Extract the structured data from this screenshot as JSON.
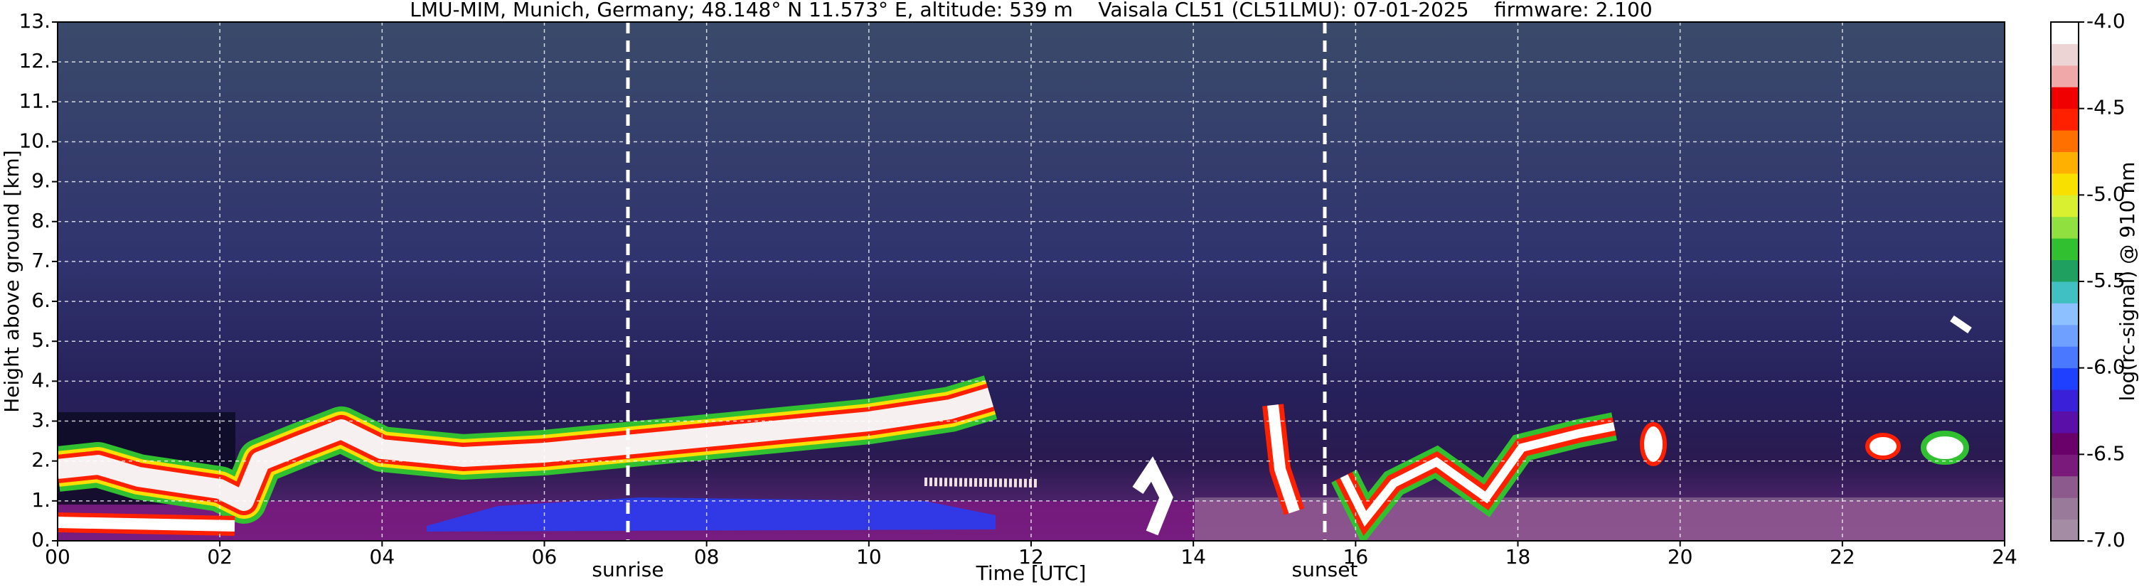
{
  "chart_data": {
    "type": "ceilometer",
    "title": "LMU-MIM, Munich, Germany; 48.148° N 11.573° E, altitude: 539 m    Vaisala CL51 (CL51LMU): 07-01-2025    firmware: 2.100",
    "x_label": "Time [UTC]",
    "y_label": "Height above ground [km]",
    "xlim": [
      0,
      24
    ],
    "xticks": [
      {
        "value": 0,
        "label": "00"
      },
      {
        "value": 2,
        "label": "02"
      },
      {
        "value": 4,
        "label": "04"
      },
      {
        "value": 6,
        "label": "06"
      },
      {
        "value": 8,
        "label": "08"
      },
      10,
      12,
      14,
      16,
      18,
      20,
      22,
      24
    ],
    "ylim": [
      0,
      13
    ],
    "yticks": [
      {
        "value": 0,
        "label": "0."
      },
      {
        "value": 1,
        "label": "1."
      },
      {
        "value": 2,
        "label": "2."
      },
      {
        "value": 3,
        "label": "3."
      },
      {
        "value": 4,
        "label": "4."
      },
      {
        "value": 5,
        "label": "5."
      },
      {
        "value": 6,
        "label": "6."
      },
      {
        "value": 7,
        "label": "7."
      },
      {
        "value": 8,
        "label": "8."
      },
      {
        "value": 9,
        "label": "9."
      },
      {
        "value": 10,
        "label": "10."
      },
      {
        "value": 11,
        "label": "11."
      },
      {
        "value": 12,
        "label": "12."
      },
      {
        "value": 13,
        "label": "13."
      }
    ],
    "grid": true,
    "annotations": [
      {
        "text": "sunrise",
        "x": 7.03
      },
      {
        "text": "sunset",
        "x": 15.62
      }
    ],
    "colorbar": {
      "label": "log(rc-signal) @ 910 nm",
      "lim": [
        -7,
        -4
      ],
      "ticks": [
        {
          "value": -4,
          "label": "-4.0"
        },
        -4.5,
        {
          "value": -5,
          "label": "-5.0"
        },
        -5.5,
        {
          "value": -6,
          "label": "-6.0"
        },
        -6.5,
        {
          "value": -7,
          "label": "-7.0"
        }
      ],
      "colors": [
        "#a48ca4",
        "#9a7a9a",
        "#8c5a8c",
        "#7a1a7a",
        "#6a006a",
        "#5a10a8",
        "#3a20d8",
        "#2040ff",
        "#4a78ff",
        "#70a0ff",
        "#8cc0ff",
        "#40c0c0",
        "#20a060",
        "#30c030",
        "#90e040",
        "#d8f030",
        "#f8e000",
        "#ffb000",
        "#ff7000",
        "#ff2000",
        "#f00000",
        "#f0a8a8",
        "#ecd4d4",
        "#ffffff"
      ]
    }
  }
}
